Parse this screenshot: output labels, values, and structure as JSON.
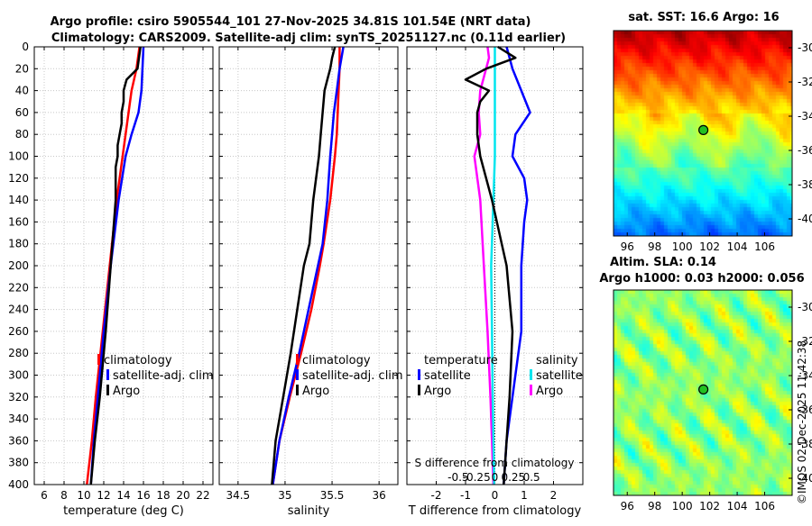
{
  "title": {
    "line1": "Argo profile: csiro 5905544_101 27-Nov-2025 34.81S 101.54E (NRT data)",
    "line2": "Climatology: CARS2009. Satellite-adj clim: synTS_20251127.nc (0.11d earlier)"
  },
  "colors": {
    "climatology": "#ff0000",
    "satellite": "#0000ff",
    "argo": "#000000",
    "sal_sat": "#00e5ee",
    "sal_argo": "#ff00ff",
    "grid": "#c8c8c8",
    "marker": "#22c022"
  },
  "chart_data": [
    {
      "id": "temperature",
      "type": "line",
      "xlabel": "temperature (deg C)",
      "ylabel": "",
      "xlim": [
        5,
        23
      ],
      "ylim": [
        400,
        0
      ],
      "xticks": [
        6,
        8,
        10,
        12,
        14,
        16,
        18,
        20,
        22
      ],
      "xtick_labels": [
        "6",
        "8",
        "10",
        "12",
        "14",
        "16",
        "18",
        "20",
        "22"
      ],
      "yticks": [
        0,
        20,
        40,
        60,
        80,
        100,
        120,
        140,
        160,
        180,
        200,
        220,
        240,
        260,
        280,
        300,
        320,
        340,
        360,
        380,
        400
      ],
      "ytick_labels": [
        "0",
        "20",
        "40",
        "60",
        "80",
        "100",
        "120",
        "140",
        "160",
        "180",
        "200",
        "220",
        "240",
        "260",
        "280",
        "300",
        "320",
        "340",
        "360",
        "380",
        "400"
      ],
      "legend": [
        "climatology",
        "satellite-adj. clim",
        "Argo"
      ],
      "series": [
        {
          "name": "climatology",
          "depth": [
            0,
            20,
            40,
            60,
            80,
            100,
            140,
            200,
            260,
            320,
            360,
            400
          ],
          "values": [
            15.6,
            15.3,
            14.8,
            14.5,
            14.2,
            13.9,
            13.3,
            12.6,
            11.9,
            11.2,
            10.8,
            10.3
          ]
        },
        {
          "name": "satellite-adj. clim",
          "depth": [
            0,
            20,
            40,
            60,
            80,
            100,
            140,
            200,
            260,
            320,
            360,
            400
          ],
          "values": [
            16.0,
            15.9,
            15.8,
            15.5,
            14.8,
            14.2,
            13.5,
            12.7,
            12.0,
            11.4,
            11.0,
            10.7
          ]
        },
        {
          "name": "Argo",
          "depth": [
            0,
            20,
            30,
            40,
            50,
            60,
            70,
            80,
            90,
            100,
            110,
            140,
            200,
            260,
            320,
            360,
            400
          ],
          "values": [
            15.7,
            15.4,
            14.3,
            14.0,
            14.0,
            13.8,
            13.8,
            13.6,
            13.4,
            13.4,
            13.2,
            13.2,
            12.7,
            12.2,
            11.6,
            11.1,
            10.7
          ]
        }
      ]
    },
    {
      "id": "salinity",
      "type": "line",
      "xlabel": "salinity",
      "xlim": [
        34.3,
        36.2
      ],
      "ylim": [
        400,
        0
      ],
      "xticks": [
        34.5,
        35,
        35.5,
        36
      ],
      "xtick_labels": [
        "34.5",
        "35",
        "35.5",
        "36"
      ],
      "legend": [
        "climatology",
        "satellite-adj. clim",
        "Argo"
      ],
      "series": [
        {
          "name": "climatology",
          "depth": [
            0,
            20,
            40,
            60,
            80,
            100,
            140,
            180,
            200,
            240,
            280,
            320,
            360,
            400
          ],
          "values": [
            35.58,
            35.58,
            35.57,
            35.56,
            35.55,
            35.53,
            35.48,
            35.41,
            35.37,
            35.28,
            35.17,
            35.05,
            34.94,
            34.87
          ]
        },
        {
          "name": "satellite-adj. clim",
          "depth": [
            0,
            20,
            40,
            60,
            80,
            100,
            140,
            180,
            200,
            240,
            280,
            320,
            360,
            400
          ],
          "values": [
            35.62,
            35.58,
            35.55,
            35.52,
            35.5,
            35.48,
            35.45,
            35.4,
            35.35,
            35.25,
            35.15,
            35.04,
            34.94,
            34.87
          ]
        },
        {
          "name": "Argo",
          "depth": [
            0,
            10,
            20,
            30,
            40,
            60,
            80,
            100,
            140,
            180,
            200,
            240,
            280,
            320,
            360,
            400
          ],
          "values": [
            35.53,
            35.5,
            35.48,
            35.45,
            35.42,
            35.4,
            35.38,
            35.36,
            35.3,
            35.26,
            35.2,
            35.13,
            35.06,
            34.98,
            34.9,
            34.86
          ]
        }
      ]
    },
    {
      "id": "difference",
      "type": "line",
      "xlabel": "T difference from climatology",
      "xlabel_top": "S difference from climatology",
      "xlim": [
        -3,
        3
      ],
      "ylim": [
        400,
        0
      ],
      "xticks": [
        -2,
        -1,
        0,
        1,
        2
      ],
      "xtick_labels": [
        "-2",
        "-1",
        "0",
        "1",
        "2"
      ],
      "sticks": [
        -0.5,
        -0.25,
        0,
        0.25,
        0.5
      ],
      "stick_labels": [
        "-0.5",
        "-0.25",
        "0",
        "0.25",
        "0.5"
      ],
      "legend_t": [
        "temperature",
        "satellite",
        "Argo"
      ],
      "legend_s": [
        "salinity",
        "satellite",
        "Argo"
      ],
      "series": [
        {
          "name": "T satellite",
          "depth": [
            0,
            20,
            40,
            60,
            80,
            100,
            120,
            140,
            160,
            200,
            260,
            320,
            360,
            400
          ],
          "values": [
            0.4,
            0.6,
            0.9,
            1.2,
            0.7,
            0.6,
            1.0,
            1.1,
            1.0,
            0.9,
            0.9,
            0.6,
            0.4,
            0.3
          ]
        },
        {
          "name": "T Argo",
          "depth": [
            0,
            10,
            20,
            30,
            40,
            50,
            60,
            80,
            100,
            140,
            200,
            260,
            320,
            360,
            400
          ],
          "values": [
            0.1,
            0.7,
            -0.3,
            -1.0,
            -0.2,
            -0.5,
            -0.6,
            -0.6,
            -0.5,
            -0.1,
            0.4,
            0.6,
            0.5,
            0.4,
            0.3
          ]
        },
        {
          "name": "S satellite",
          "depth": [
            0,
            20,
            40,
            60,
            100,
            140,
            200,
            260,
            320,
            360,
            400
          ],
          "values": [
            0.0,
            0.0,
            0.0,
            0.0,
            0.0,
            -0.02,
            -0.05,
            -0.04,
            -0.03,
            -0.02,
            -0.01
          ]
        },
        {
          "name": "S Argo",
          "depth": [
            0,
            10,
            20,
            40,
            60,
            80,
            100,
            140,
            200,
            260,
            320,
            360,
            400
          ],
          "values": [
            -0.1,
            -0.08,
            -0.12,
            -0.2,
            -0.22,
            -0.2,
            -0.28,
            -0.2,
            -0.15,
            -0.1,
            -0.06,
            -0.04,
            -0.02
          ]
        }
      ]
    },
    {
      "id": "sst-map",
      "type": "heatmap",
      "title": "sat. SST: 16.6 Argo: 16",
      "xlim": [
        95,
        108
      ],
      "ylim": [
        -41,
        -29
      ],
      "xticks": [
        96,
        98,
        100,
        102,
        104,
        106
      ],
      "xtick_labels": [
        "96",
        "98",
        "100",
        "102",
        "104",
        "106"
      ],
      "yticks": [
        -30,
        -32,
        -34,
        -36,
        -38,
        -40
      ],
      "ytick_labels": [
        "-30",
        "-32",
        "-34",
        "-36",
        "-38",
        "-40"
      ],
      "marker": {
        "lon": 101.54,
        "lat": -34.81
      }
    },
    {
      "id": "sla-map",
      "type": "heatmap",
      "title1": "Altim. SLA: 0.14",
      "title2": "Argo h1000: 0.03 h2000: 0.056",
      "xlim": [
        95,
        108
      ],
      "ylim": [
        -41,
        -29
      ],
      "xticks": [
        96,
        98,
        100,
        102,
        104,
        106
      ],
      "xtick_labels": [
        "96",
        "98",
        "100",
        "102",
        "104",
        "106"
      ],
      "yticks": [
        -30,
        -32,
        -34,
        -36,
        -38,
        -40
      ],
      "ytick_labels": [
        "-30",
        "-32",
        "-34",
        "-36",
        "-38",
        "-40"
      ],
      "marker": {
        "lon": 101.54,
        "lat": -34.81
      }
    }
  ],
  "stamp": "©IMOS 02-Dec-2025 11:42:38"
}
